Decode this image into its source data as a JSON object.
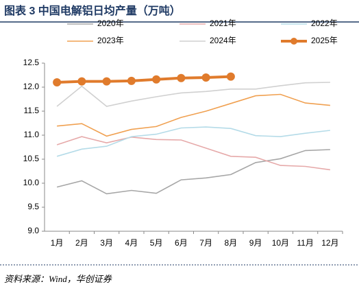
{
  "title": "图表 3   中国电解铝日均产量（万吨）",
  "source": "资料来源：Wind，华创证券",
  "chart_data": {
    "type": "line",
    "categories": [
      "1月",
      "2月",
      "3月",
      "4月",
      "5月",
      "6月",
      "7月",
      "8月",
      "9月",
      "10月",
      "11月",
      "12月"
    ],
    "ylim": [
      9,
      12.5
    ],
    "yticks": [
      {
        "value": 9,
        "label": "9.0"
      },
      9.5,
      {
        "value": 10,
        "label": "10.0"
      },
      10.5,
      {
        "value": 11,
        "label": "11.0"
      },
      11.5,
      {
        "value": 12,
        "label": "12.0"
      },
      12.5
    ],
    "grid": false,
    "series": [
      {
        "name": "2020年",
        "color": "#a6a6a6",
        "width": 1.6,
        "markers": false,
        "values": [
          9.92,
          10.05,
          9.78,
          9.85,
          9.79,
          10.07,
          10.11,
          10.18,
          10.43,
          10.51,
          10.68,
          10.7
        ]
      },
      {
        "name": "2021年",
        "color": "#e6a9a9",
        "width": 1.6,
        "markers": false,
        "values": [
          10.8,
          10.97,
          10.84,
          10.96,
          10.91,
          10.9,
          10.73,
          10.56,
          10.54,
          10.37,
          10.35,
          10.28
        ]
      },
      {
        "name": "2022年",
        "color": "#b4dbe8",
        "width": 1.6,
        "markers": false,
        "values": [
          10.56,
          10.71,
          10.77,
          10.97,
          11.02,
          11.15,
          11.17,
          11.14,
          10.99,
          10.97,
          11.04,
          11.1
        ]
      },
      {
        "name": "2023年",
        "color": "#f0a050",
        "width": 1.6,
        "markers": false,
        "values": [
          11.19,
          11.24,
          10.98,
          11.12,
          11.18,
          11.37,
          11.5,
          11.66,
          11.82,
          11.85,
          11.67,
          11.62
        ]
      },
      {
        "name": "2024年",
        "color": "#d0d0d0",
        "width": 1.6,
        "markers": false,
        "values": [
          11.6,
          12.02,
          11.6,
          11.71,
          11.8,
          11.88,
          11.91,
          11.96,
          11.96,
          12.03,
          12.09,
          12.1
        ]
      },
      {
        "name": "2025年",
        "color": "#e07b2c",
        "width": 4,
        "markers": true,
        "values": [
          12.1,
          12.12,
          12.12,
          12.13,
          12.16,
          12.19,
          12.2,
          12.22,
          null,
          null,
          null,
          null
        ]
      }
    ]
  }
}
